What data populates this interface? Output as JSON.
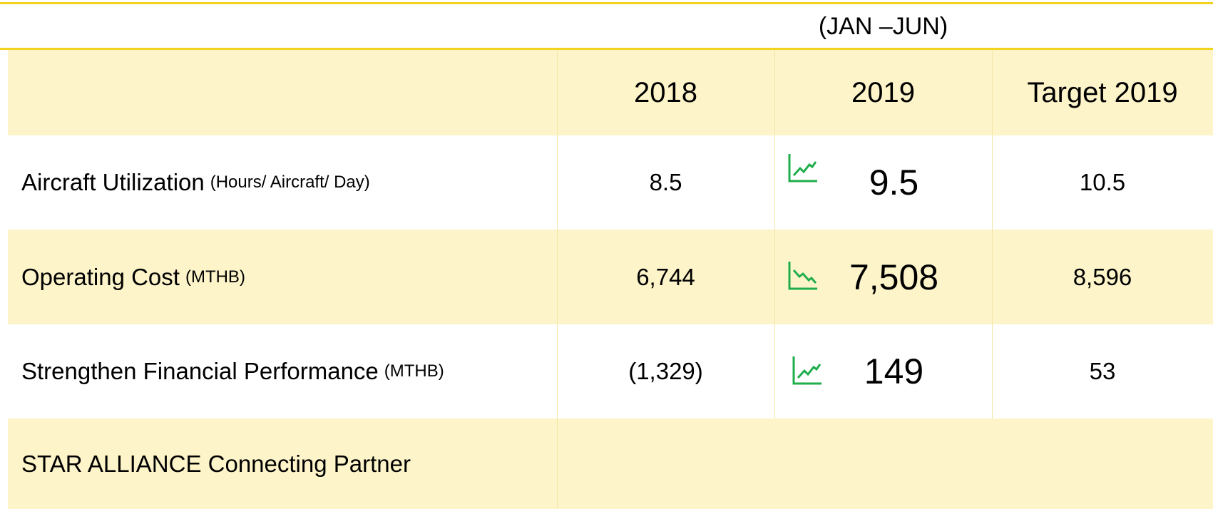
{
  "header": {
    "period": "(JAN –JUN)",
    "columns": [
      "2018",
      "2019",
      "Target 2019"
    ]
  },
  "rows": [
    {
      "label": "Aircraft Utilization",
      "unit": "(Hours/ Aircraft/ Day)",
      "values": [
        "8.5",
        "9.5",
        "10.5"
      ]
    },
    {
      "label": "Operating Cost",
      "unit": "(MTHB)",
      "values": [
        "6,744",
        "7,508",
        "8,596"
      ]
    },
    {
      "label": "Strengthen Financial Performance",
      "unit": "(MTHB)",
      "values": [
        "(1,329)",
        "149",
        "53"
      ]
    }
  ],
  "footer": {
    "label": "STAR ALLIANCE Connecting Partner"
  }
}
